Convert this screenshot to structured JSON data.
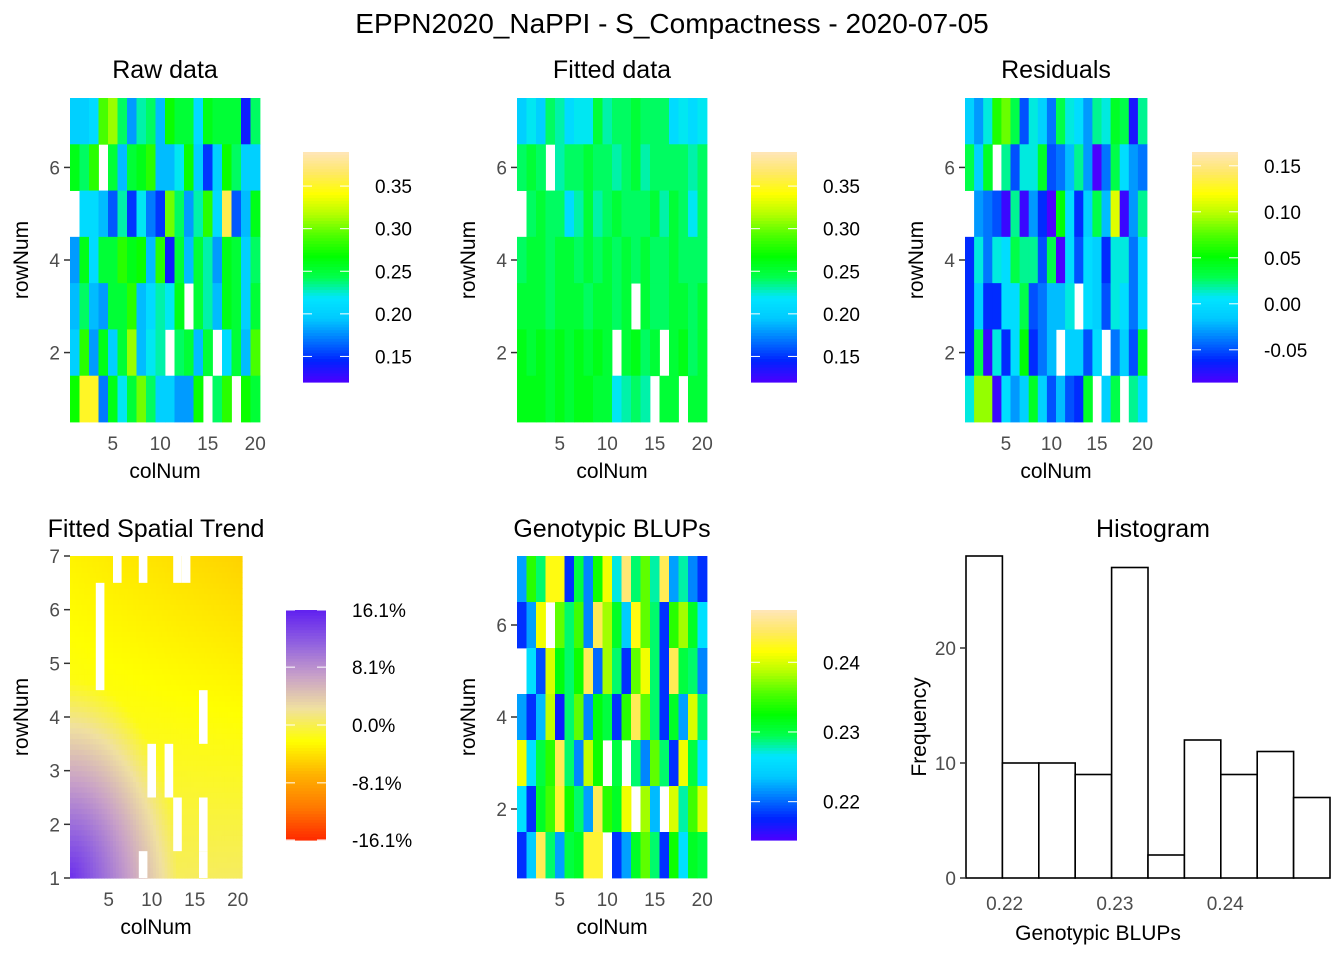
{
  "title": "EPPN2020_NaPPI - S_Compactness - 2020-07-05",
  "palettes": {
    "topo": [
      "#4B00FF",
      "#0022FF",
      "#0077FF",
      "#00C8FF",
      "#00E5FF",
      "#00FF4D",
      "#00FF00",
      "#4DFF00",
      "#B3FF00",
      "#FFFF00",
      "#FFE866",
      "#FFE6BB"
    ],
    "trend": [
      "#FF2A00",
      "#FF7A00",
      "#FFB300",
      "#FFFF00",
      "#F0E0A0",
      "#C8A0C8",
      "#9060E0",
      "#6020F0"
    ]
  },
  "chart_data": [
    {
      "id": "raw",
      "type": "heatmap",
      "title": "Raw data",
      "xlabel": "colNum",
      "ylabel": "rowNum",
      "xlim": [
        0.5,
        20.5
      ],
      "ylim": [
        0.5,
        7.5
      ],
      "xticks": [
        "5",
        "10",
        "15",
        "20"
      ],
      "yticks": [
        "2",
        "4",
        "6"
      ],
      "zlim": [
        0.12,
        0.39
      ],
      "legend": {
        "labels": [
          "0.35",
          "0.30",
          "0.25",
          "0.20",
          "0.15"
        ],
        "values": [
          0.35,
          0.3,
          0.25,
          0.2,
          0.15
        ],
        "position": "right"
      },
      "colorscale": "topo",
      "rows": [
        {
          "row": 7,
          "values": [
            0.2,
            0.2,
            0.21,
            0.29,
            0.31,
            0.24,
            0.18,
            0.23,
            0.24,
            0.19,
            0.27,
            0.25,
            0.25,
            0.21,
            0.26,
            0.25,
            0.25,
            0.25,
            0.14,
            0.24
          ]
        },
        {
          "row": 6,
          "values": [
            0.26,
            0.24,
            0.28,
            null,
            0.25,
            0.19,
            0.25,
            0.26,
            0.28,
            0.19,
            0.19,
            0.22,
            0.27,
            0.2,
            0.15,
            0.2,
            0.27,
            0.24,
            0.2,
            0.2
          ]
        },
        {
          "row": 5,
          "values": [
            null,
            0.21,
            0.21,
            0.19,
            0.16,
            0.23,
            0.15,
            0.22,
            0.17,
            0.15,
            0.3,
            0.24,
            0.18,
            0.23,
            0.28,
            0.21,
            0.36,
            0.16,
            0.19,
            0.26
          ]
        },
        {
          "row": 4,
          "values": [
            0.18,
            0.26,
            0.21,
            0.25,
            0.25,
            0.28,
            0.26,
            0.27,
            0.19,
            0.28,
            0.14,
            0.25,
            0.19,
            0.25,
            0.23,
            0.18,
            0.26,
            0.25,
            0.2,
            0.24
          ]
        },
        {
          "row": 3,
          "values": [
            0.19,
            0.24,
            0.19,
            0.18,
            0.25,
            0.25,
            0.28,
            0.19,
            0.21,
            0.23,
            0.22,
            0.26,
            null,
            0.25,
            0.23,
            0.19,
            0.26,
            0.25,
            0.2,
            0.25
          ]
        },
        {
          "row": 2,
          "values": [
            0.2,
            0.28,
            0.18,
            0.26,
            0.2,
            0.25,
            0.31,
            0.19,
            0.22,
            0.23,
            null,
            0.24,
            0.25,
            0.19,
            0.25,
            null,
            0.21,
            0.25,
            0.19,
            0.29
          ]
        },
        {
          "row": 1,
          "values": [
            0.27,
            0.35,
            0.35,
            0.17,
            0.26,
            0.22,
            0.25,
            0.3,
            0.24,
            0.2,
            0.2,
            0.18,
            0.18,
            0.27,
            null,
            0.24,
            0.28,
            null,
            0.27,
            0.25
          ]
        }
      ]
    },
    {
      "id": "fitted",
      "type": "heatmap",
      "title": "Fitted data",
      "xlabel": "colNum",
      "ylabel": "rowNum",
      "xlim": [
        0.5,
        20.5
      ],
      "ylim": [
        0.5,
        7.5
      ],
      "xticks": [
        "5",
        "10",
        "15",
        "20"
      ],
      "yticks": [
        "2",
        "4",
        "6"
      ],
      "zlim": [
        0.12,
        0.39
      ],
      "legend": {
        "labels": [
          "0.35",
          "0.30",
          "0.25",
          "0.20",
          "0.15"
        ],
        "values": [
          0.35,
          0.3,
          0.25,
          0.2,
          0.15
        ],
        "position": "right"
      },
      "colorscale": "topo",
      "rows": [
        {
          "row": 7,
          "values": [
            0.2,
            0.22,
            0.2,
            0.24,
            0.23,
            0.21,
            0.22,
            0.22,
            0.25,
            0.23,
            0.24,
            0.24,
            0.25,
            0.24,
            0.24,
            0.24,
            0.21,
            0.22,
            0.21,
            0.22
          ]
        },
        {
          "row": 6,
          "values": [
            0.24,
            0.25,
            0.24,
            null,
            0.23,
            0.24,
            0.24,
            0.25,
            0.24,
            0.24,
            0.23,
            0.24,
            0.25,
            0.23,
            0.24,
            0.24,
            0.24,
            0.24,
            0.23,
            0.24
          ]
        },
        {
          "row": 5,
          "values": [
            null,
            0.24,
            0.25,
            0.24,
            0.24,
            0.21,
            0.23,
            0.25,
            0.23,
            0.24,
            0.25,
            0.24,
            0.24,
            0.24,
            0.25,
            0.23,
            0.25,
            0.24,
            0.22,
            0.24
          ]
        },
        {
          "row": 4,
          "values": [
            0.24,
            0.25,
            0.25,
            0.24,
            0.25,
            0.25,
            0.24,
            0.25,
            0.24,
            0.25,
            0.24,
            0.25,
            0.24,
            0.25,
            0.24,
            0.24,
            0.25,
            0.24,
            0.24,
            0.24
          ]
        },
        {
          "row": 3,
          "values": [
            0.25,
            0.25,
            0.25,
            0.24,
            0.25,
            0.25,
            0.25,
            0.24,
            0.25,
            0.25,
            0.24,
            0.25,
            null,
            0.25,
            0.24,
            0.24,
            0.25,
            0.25,
            0.24,
            0.25
          ]
        },
        {
          "row": 2,
          "values": [
            0.26,
            0.25,
            0.26,
            0.25,
            0.26,
            0.25,
            0.26,
            0.25,
            0.26,
            0.25,
            null,
            0.25,
            0.26,
            0.24,
            0.25,
            null,
            0.25,
            0.26,
            0.24,
            0.25
          ]
        },
        {
          "row": 1,
          "values": [
            0.26,
            0.26,
            0.26,
            0.25,
            0.26,
            0.25,
            0.26,
            0.26,
            0.25,
            0.25,
            0.22,
            0.23,
            0.24,
            0.23,
            null,
            0.25,
            0.25,
            null,
            0.25,
            0.25
          ]
        }
      ]
    },
    {
      "id": "residuals",
      "type": "heatmap",
      "title": "Residuals",
      "xlabel": "colNum",
      "ylabel": "rowNum",
      "xlim": [
        0.5,
        20.5
      ],
      "ylim": [
        0.5,
        7.5
      ],
      "xticks": [
        "5",
        "10",
        "15",
        "20"
      ],
      "yticks": [
        "2",
        "4",
        "6"
      ],
      "zlim": [
        -0.085,
        0.165
      ],
      "legend": {
        "labels": [
          "0.15",
          "0.10",
          "0.05",
          "0.00",
          "-0.05"
        ],
        "values": [
          0.15,
          0.1,
          0.05,
          0.0,
          -0.05
        ],
        "position": "right"
      },
      "colorscale": "topo",
      "rows": [
        {
          "row": 7,
          "values": [
            -0.01,
            -0.03,
            0.01,
            0.06,
            0.08,
            0.03,
            -0.05,
            0.01,
            -0.01,
            -0.04,
            0.03,
            0.01,
            0.0,
            -0.03,
            0.02,
            0.01,
            0.04,
            0.03,
            -0.07,
            0.02
          ]
        },
        {
          "row": 6,
          "values": [
            0.03,
            -0.01,
            0.04,
            null,
            0.02,
            -0.05,
            0.01,
            0.01,
            0.04,
            -0.05,
            -0.04,
            -0.02,
            0.02,
            -0.03,
            -0.09,
            -0.04,
            0.03,
            0.0,
            -0.03,
            -0.04
          ]
        },
        {
          "row": 5,
          "values": [
            null,
            -0.03,
            -0.04,
            -0.05,
            -0.08,
            0.02,
            -0.08,
            -0.03,
            -0.06,
            -0.09,
            0.05,
            0.0,
            -0.06,
            -0.01,
            0.03,
            -0.02,
            0.11,
            -0.08,
            -0.03,
            0.02
          ]
        },
        {
          "row": 4,
          "values": [
            -0.06,
            0.01,
            -0.04,
            0.01,
            0.0,
            0.03,
            0.02,
            0.02,
            -0.05,
            0.03,
            -0.1,
            0.0,
            -0.05,
            0.0,
            -0.01,
            -0.06,
            0.01,
            0.01,
            -0.04,
            0.0
          ]
        },
        {
          "row": 3,
          "values": [
            -0.06,
            -0.01,
            -0.06,
            -0.06,
            0.0,
            0.0,
            0.03,
            -0.05,
            -0.04,
            -0.02,
            -0.02,
            0.01,
            null,
            0.0,
            -0.01,
            -0.05,
            0.01,
            0.0,
            -0.04,
            0.0
          ]
        },
        {
          "row": 2,
          "values": [
            -0.06,
            0.03,
            -0.08,
            0.01,
            -0.06,
            0.0,
            0.05,
            -0.06,
            -0.04,
            -0.02,
            null,
            -0.01,
            -0.01,
            -0.05,
            0.0,
            null,
            -0.04,
            -0.01,
            -0.05,
            0.04
          ]
        },
        {
          "row": 1,
          "values": [
            0.01,
            0.09,
            0.09,
            -0.08,
            0.0,
            -0.03,
            -0.01,
            0.04,
            -0.01,
            -0.05,
            -0.02,
            -0.05,
            -0.06,
            0.04,
            null,
            -0.01,
            0.03,
            null,
            0.02,
            0.0
          ]
        }
      ]
    },
    {
      "id": "trend",
      "type": "heatmap",
      "title": "Fitted Spatial Trend",
      "xlabel": "colNum",
      "ylabel": "rowNum",
      "xlim": [
        0.5,
        20.5
      ],
      "ylim": [
        1,
        7
      ],
      "xticks": [
        "5",
        "10",
        "15",
        "20"
      ],
      "yticks": [
        "1",
        "2",
        "3",
        "4",
        "5",
        "6",
        "7"
      ],
      "zlim": [
        -16.1,
        16.1
      ],
      "legend": {
        "labels": [
          "16.1%",
          "8.1%",
          "0.0%",
          "-8.1%",
          "-16.1%"
        ],
        "values": [
          16.1,
          8.1,
          0.0,
          -8.1,
          -16.1
        ],
        "position": "right"
      },
      "colorscale": "trend",
      "surface": {
        "corner_low_left_percent": 15.0,
        "top_left_percent": -3.0,
        "top_right_percent": -5.0,
        "bottom_right_percent": 0.5
      },
      "missing_plots": [
        {
          "col": 6,
          "row": 7
        },
        {
          "col": 9,
          "row": 7
        },
        {
          "col": 13,
          "row": 7
        },
        {
          "col": 14,
          "row": 7
        },
        {
          "col": 4,
          "row": 6
        },
        {
          "col": 4,
          "row": 5
        },
        {
          "col": 16,
          "row": 4
        },
        {
          "col": 10,
          "row": 3
        },
        {
          "col": 12,
          "row": 3
        },
        {
          "col": 13,
          "row": 2
        },
        {
          "col": 16,
          "row": 2
        },
        {
          "col": 9,
          "row": 1
        },
        {
          "col": 16,
          "row": 1
        }
      ]
    },
    {
      "id": "blups",
      "type": "heatmap",
      "title": "Genotypic BLUPs",
      "xlabel": "colNum",
      "ylabel": "rowNum",
      "xlim": [
        0.5,
        20.5
      ],
      "ylim": [
        0.5,
        7.5
      ],
      "xticks": [
        "5",
        "10",
        "15",
        "20"
      ],
      "yticks": [
        "2",
        "4",
        "6"
      ],
      "zlim": [
        0.2145,
        0.2475
      ],
      "legend": {
        "labels": [
          "0.24",
          "0.23",
          "0.22"
        ],
        "values": [
          0.24,
          0.23,
          0.22
        ],
        "position": "right"
      },
      "colorscale": "topo",
      "rows": [
        {
          "row": 7,
          "values": [
            0.222,
            0.234,
            0.229,
            0.242,
            0.242,
            0.218,
            0.23,
            0.221,
            0.233,
            0.241,
            0.227,
            0.245,
            0.229,
            0.236,
            0.228,
            0.244,
            0.222,
            0.228,
            0.221,
            0.218
          ]
        },
        {
          "row": 6,
          "values": [
            0.218,
            0.222,
            0.241,
            null,
            0.236,
            0.229,
            0.235,
            0.221,
            0.244,
            0.238,
            0.231,
            0.224,
            0.242,
            0.236,
            0.229,
            0.218,
            0.234,
            0.238,
            0.231,
            0.226
          ]
        },
        {
          "row": 5,
          "values": [
            null,
            0.226,
            0.219,
            0.24,
            0.232,
            0.229,
            0.233,
            0.244,
            0.22,
            0.238,
            0.229,
            0.218,
            0.236,
            0.241,
            0.229,
            0.218,
            0.244,
            0.23,
            0.229,
            0.221
          ]
        },
        {
          "row": 4,
          "values": [
            0.222,
            0.218,
            0.223,
            0.239,
            0.217,
            0.229,
            0.236,
            0.221,
            0.232,
            0.23,
            0.218,
            0.234,
            0.244,
            0.236,
            0.229,
            0.218,
            0.231,
            0.222,
            0.24,
            0.229
          ]
        },
        {
          "row": 3,
          "values": [
            0.241,
            0.226,
            0.23,
            0.234,
            0.244,
            0.229,
            0.221,
            0.239,
            0.233,
            null,
            0.23,
            null,
            0.229,
            0.221,
            0.236,
            0.229,
            0.218,
            0.241,
            0.23,
            0.226
          ]
        },
        {
          "row": 2,
          "values": [
            0.226,
            0.218,
            0.231,
            0.235,
            0.243,
            0.233,
            0.229,
            0.222,
            0.244,
            0.234,
            0.231,
            0.241,
            null,
            0.238,
            0.223,
            null,
            0.24,
            0.228,
            0.235,
            0.24
          ]
        },
        {
          "row": 1,
          "values": [
            0.218,
            0.224,
            0.244,
            0.229,
            0.222,
            0.23,
            0.231,
            0.243,
            0.243,
            null,
            0.218,
            0.222,
            0.231,
            0.236,
            0.229,
            0.218,
            0.233,
            0.226,
            0.231,
            0.23
          ]
        }
      ]
    },
    {
      "id": "histogram",
      "type": "bar",
      "title": "Histogram",
      "xlabel": "Genotypic BLUPs",
      "ylabel": "Frequency",
      "xlim": [
        0.2165,
        0.2495
      ],
      "ylim": [
        0,
        28
      ],
      "xticks": [
        "0.22",
        "0.23",
        "0.24"
      ],
      "xtick_values": [
        0.22,
        0.23,
        0.24
      ],
      "yticks": [
        "0",
        "10",
        "20"
      ],
      "ytick_values": [
        0,
        10,
        20
      ],
      "bin_edges": [
        0.2165,
        0.2198,
        0.2231,
        0.2264,
        0.2297,
        0.233,
        0.2363,
        0.2396,
        0.2429,
        0.2462,
        0.2495
      ],
      "values": [
        28,
        10,
        10,
        9,
        27,
        2,
        12,
        9,
        11,
        7
      ]
    }
  ]
}
